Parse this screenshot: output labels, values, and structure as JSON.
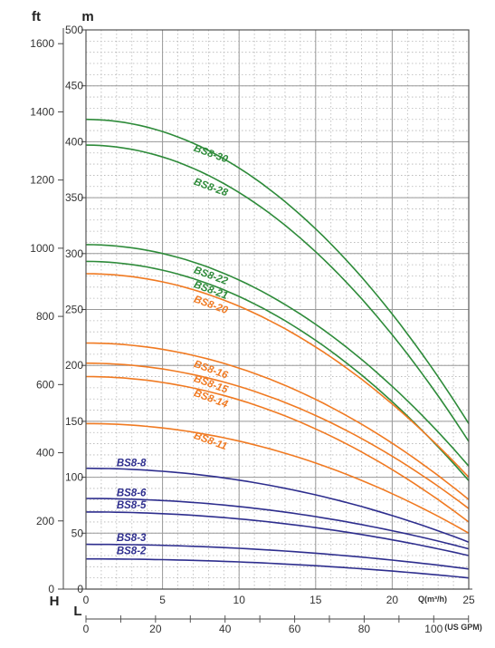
{
  "chart_data": {
    "type": "line",
    "title": "",
    "x_primary": {
      "label": "Q(m³/h)",
      "min": 0,
      "max": 25,
      "ticks": [
        0,
        5,
        10,
        15,
        20,
        25
      ]
    },
    "x_secondary": {
      "label": "(US GPM)",
      "min": 0,
      "max": 110.07,
      "ticks": [
        0,
        20,
        40,
        60,
        80,
        100
      ]
    },
    "y_primary": {
      "unit": "m",
      "min": 0,
      "max": 500,
      "ticks": [
        0,
        50,
        100,
        150,
        200,
        250,
        300,
        350,
        400,
        450,
        500
      ]
    },
    "y_secondary": {
      "unit": "ft",
      "min": 0,
      "max": 1640.4,
      "ticks": [
        0,
        200,
        400,
        600,
        800,
        1000,
        1200,
        1400,
        1600
      ]
    },
    "corner_labels": {
      "ft": "ft",
      "m": "m",
      "H": "H",
      "L": "L"
    },
    "grid": true,
    "colors": {
      "green": "#2e8b3a",
      "orange": "#f07a22",
      "blue": "#2e2e8e",
      "grid": "#b5b5b5"
    },
    "series": [
      {
        "name": "BS8-30",
        "color": "#2e8b3a",
        "shutoff": 420,
        "end": 148,
        "label_at": [
          7,
          392
        ]
      },
      {
        "name": "BS8-28",
        "color": "#2e8b3a",
        "shutoff": 397,
        "end": 132,
        "label_at": [
          7,
          362
        ]
      },
      {
        "name": "BS8-22",
        "color": "#2e8b3a",
        "shutoff": 308,
        "end": 110,
        "label_at": [
          7,
          283
        ]
      },
      {
        "name": "BS8-21",
        "color": "#2e8b3a",
        "shutoff": 293,
        "end": 97,
        "label_at": [
          7,
          270
        ]
      },
      {
        "name": "BS8-20",
        "color": "#f07a22",
        "shutoff": 282,
        "end": 100,
        "label_at": [
          7,
          257
        ]
      },
      {
        "name": "BS8-16",
        "color": "#f07a22",
        "shutoff": 220,
        "end": 80,
        "label_at": [
          7,
          199
        ]
      },
      {
        "name": "BS8-15",
        "color": "#f07a22",
        "shutoff": 202,
        "end": 72,
        "label_at": [
          7,
          186
        ]
      },
      {
        "name": "BS8-14",
        "color": "#f07a22",
        "shutoff": 190,
        "end": 60,
        "label_at": [
          7,
          173
        ]
      },
      {
        "name": "BS8-11",
        "color": "#f07a22",
        "shutoff": 148,
        "end": 50,
        "label_at": [
          7,
          135
        ]
      },
      {
        "name": "BS8-8",
        "color": "#2e2e8e",
        "shutoff": 108,
        "end": 42,
        "label_at": [
          2,
          110
        ]
      },
      {
        "name": "BS8-6",
        "color": "#2e2e8e",
        "shutoff": 81,
        "end": 36,
        "label_at": [
          2,
          83
        ]
      },
      {
        "name": "BS8-5",
        "color": "#2e2e8e",
        "shutoff": 69,
        "end": 30,
        "label_at": [
          2,
          72
        ]
      },
      {
        "name": "BS8-3",
        "color": "#2e2e8e",
        "shutoff": 40,
        "end": 18,
        "label_at": [
          2,
          43
        ]
      },
      {
        "name": "BS8-2",
        "color": "#2e2e8e",
        "shutoff": 27,
        "end": 10,
        "label_at": [
          2,
          31
        ]
      }
    ]
  }
}
